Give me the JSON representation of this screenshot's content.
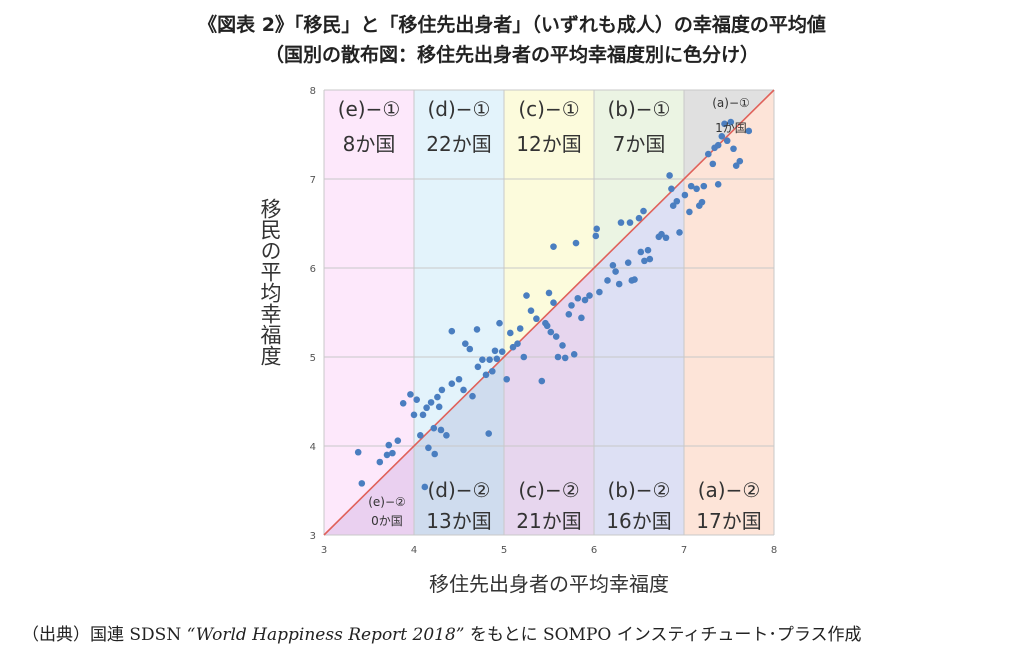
{
  "title": "《図表 2》「移民」と「移住先出身者」（いずれも成人）の幸福度の平均値",
  "subtitle": "（国別の散布図：移住先出身者の平均幸福度別に色分け）",
  "source": {
    "prefix": "（出典）国連 SDSN ",
    "report": "“World Happiness Report 2018”",
    "suffix": " をもとに SOMPO インスティチュート･プラス作成"
  },
  "colors": {
    "e": "#fde8fb",
    "d": "#e3f3fb",
    "c": "#fcfbdc",
    "b": "#ebf4e3",
    "a_top": "#e0e0e0",
    "lower_e": "#ead0f0",
    "lower_d": "#cfdcee",
    "lower_c": "#e7d6ee",
    "lower_b": "#dde0f4",
    "a_bottom": "#fde4d8",
    "point": "#4a7ec0",
    "diagonal": "#e0615a"
  },
  "chart_data": {
    "type": "scatter",
    "xlabel": "移住先出身者の平均幸福度",
    "ylabel": "移民の平均幸福度",
    "xlim": [
      3,
      8
    ],
    "ylim": [
      3,
      8
    ],
    "xticks": [
      "3",
      "4",
      "5",
      "6",
      "7",
      "8"
    ],
    "yticks": [
      "3",
      "4",
      "5",
      "6",
      "7",
      "8"
    ],
    "bands": [
      {
        "x0": 3,
        "x1": 4,
        "upper_label": "(e)−①",
        "upper_count": "8か国",
        "lower_label": "(e)−②",
        "lower_count": "0か国"
      },
      {
        "x0": 4,
        "x1": 5,
        "upper_label": "(d)−①",
        "upper_count": "22か国",
        "lower_label": "(d)−②",
        "lower_count": "13か国"
      },
      {
        "x0": 5,
        "x1": 6,
        "upper_label": "(c)−①",
        "upper_count": "12か国",
        "lower_label": "(c)−②",
        "lower_count": "21か国"
      },
      {
        "x0": 6,
        "x1": 7,
        "upper_label": "(b)−①",
        "upper_count": "7か国",
        "lower_label": "(b)−②",
        "lower_count": "16か国"
      },
      {
        "x0": 7,
        "x1": 8,
        "upper_label": "(a)−①",
        "upper_count": "1か国",
        "lower_label": "(a)−②",
        "lower_count": "17か国"
      }
    ],
    "points": [
      [
        3.38,
        3.93
      ],
      [
        3.42,
        3.58
      ],
      [
        3.62,
        3.82
      ],
      [
        3.7,
        3.9
      ],
      [
        3.72,
        4.01
      ],
      [
        3.76,
        3.92
      ],
      [
        3.82,
        4.06
      ],
      [
        3.88,
        4.48
      ],
      [
        3.96,
        4.58
      ],
      [
        4.0,
        4.35
      ],
      [
        4.03,
        4.52
      ],
      [
        4.07,
        4.12
      ],
      [
        4.1,
        4.35
      ],
      [
        4.12,
        3.54
      ],
      [
        4.14,
        4.43
      ],
      [
        4.16,
        3.98
      ],
      [
        4.19,
        4.49
      ],
      [
        4.22,
        4.2
      ],
      [
        4.23,
        3.91
      ],
      [
        4.26,
        4.55
      ],
      [
        4.28,
        4.44
      ],
      [
        4.3,
        4.18
      ],
      [
        4.31,
        4.63
      ],
      [
        4.36,
        4.12
      ],
      [
        4.42,
        4.7
      ],
      [
        4.42,
        5.29
      ],
      [
        4.5,
        4.75
      ],
      [
        4.55,
        4.63
      ],
      [
        4.57,
        5.15
      ],
      [
        4.62,
        5.09
      ],
      [
        4.65,
        4.56
      ],
      [
        4.7,
        5.31
      ],
      [
        4.71,
        4.89
      ],
      [
        4.76,
        4.97
      ],
      [
        4.8,
        4.8
      ],
      [
        4.83,
        4.14
      ],
      [
        4.84,
        4.97
      ],
      [
        4.87,
        4.84
      ],
      [
        4.9,
        5.07
      ],
      [
        4.92,
        4.98
      ],
      [
        4.95,
        5.38
      ],
      [
        4.98,
        5.06
      ],
      [
        5.03,
        4.75
      ],
      [
        5.07,
        5.27
      ],
      [
        5.1,
        5.11
      ],
      [
        5.15,
        5.15
      ],
      [
        5.18,
        5.32
      ],
      [
        5.22,
        5.0
      ],
      [
        5.25,
        5.69
      ],
      [
        5.3,
        5.52
      ],
      [
        5.36,
        5.43
      ],
      [
        5.42,
        4.73
      ],
      [
        5.46,
        5.38
      ],
      [
        5.48,
        5.35
      ],
      [
        5.5,
        5.72
      ],
      [
        5.52,
        5.28
      ],
      [
        5.55,
        6.24
      ],
      [
        5.55,
        5.61
      ],
      [
        5.58,
        5.23
      ],
      [
        5.6,
        5.0
      ],
      [
        5.65,
        5.13
      ],
      [
        5.68,
        4.99
      ],
      [
        5.72,
        5.48
      ],
      [
        5.75,
        5.58
      ],
      [
        5.78,
        5.03
      ],
      [
        5.8,
        6.28
      ],
      [
        5.82,
        5.66
      ],
      [
        5.86,
        5.44
      ],
      [
        5.9,
        5.64
      ],
      [
        5.95,
        5.69
      ],
      [
        6.02,
        6.36
      ],
      [
        6.03,
        6.44
      ],
      [
        6.06,
        5.73
      ],
      [
        6.15,
        5.86
      ],
      [
        6.21,
        6.03
      ],
      [
        6.24,
        5.96
      ],
      [
        6.28,
        5.82
      ],
      [
        6.3,
        6.51
      ],
      [
        6.38,
        6.06
      ],
      [
        6.4,
        6.51
      ],
      [
        6.42,
        5.86
      ],
      [
        6.45,
        5.87
      ],
      [
        6.5,
        6.56
      ],
      [
        6.52,
        6.18
      ],
      [
        6.55,
        6.64
      ],
      [
        6.56,
        6.08
      ],
      [
        6.6,
        6.2
      ],
      [
        6.62,
        6.1
      ],
      [
        6.72,
        6.35
      ],
      [
        6.75,
        6.38
      ],
      [
        6.8,
        6.34
      ],
      [
        6.84,
        7.04
      ],
      [
        6.86,
        6.89
      ],
      [
        6.88,
        6.7
      ],
      [
        6.92,
        6.75
      ],
      [
        6.95,
        6.4
      ],
      [
        7.01,
        6.82
      ],
      [
        7.06,
        6.63
      ],
      [
        7.08,
        6.92
      ],
      [
        7.14,
        6.89
      ],
      [
        7.17,
        6.7
      ],
      [
        7.2,
        6.74
      ],
      [
        7.22,
        6.92
      ],
      [
        7.27,
        7.28
      ],
      [
        7.32,
        7.17
      ],
      [
        7.34,
        7.35
      ],
      [
        7.38,
        7.38
      ],
      [
        7.38,
        6.94
      ],
      [
        7.42,
        7.48
      ],
      [
        7.45,
        7.62
      ],
      [
        7.48,
        7.43
      ],
      [
        7.52,
        7.64
      ],
      [
        7.55,
        7.34
      ],
      [
        7.58,
        7.15
      ],
      [
        7.62,
        7.2
      ],
      [
        7.72,
        7.54
      ]
    ]
  }
}
